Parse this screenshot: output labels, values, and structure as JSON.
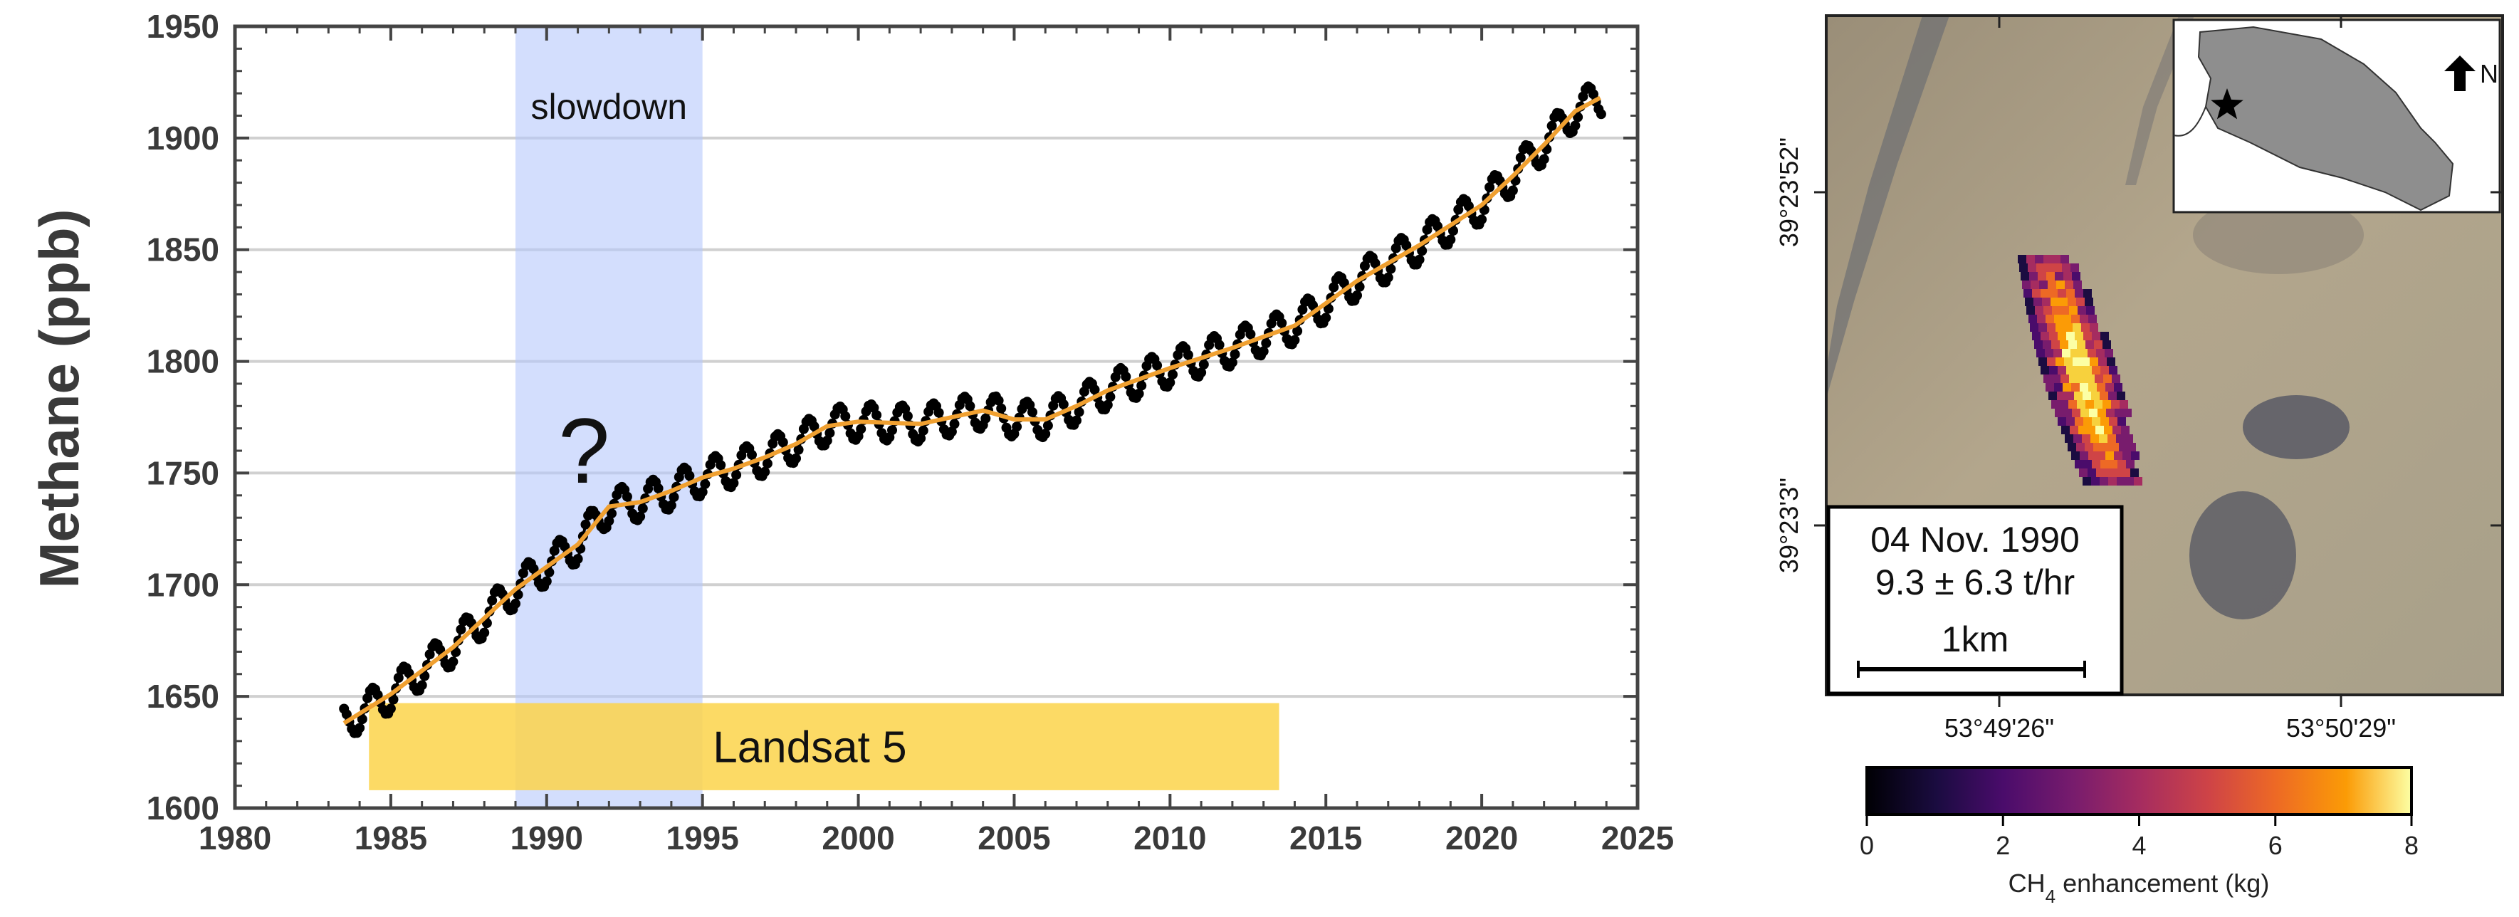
{
  "chart_data": [
    {
      "type": "line",
      "title": "",
      "xlabel": "",
      "ylabel": "Methane (ppb)",
      "xlim": [
        1980,
        2025
      ],
      "ylim": [
        1600,
        1950
      ],
      "grid": "horizontal",
      "xticks": [
        "1980",
        "1985",
        "1990",
        "1995",
        "2000",
        "2005",
        "2010",
        "2015",
        "2020",
        "2025"
      ],
      "yticks": [
        "1600",
        "1650",
        "1700",
        "1750",
        "1800",
        "1850",
        "1900",
        "1950"
      ],
      "series": [
        {
          "kind": "trend",
          "color": "#f0a030",
          "x": [
            1983.5,
            1985,
            1987,
            1989,
            1991,
            1992,
            1993,
            1994,
            1995,
            1996,
            1997,
            1998,
            1999,
            2000,
            2002,
            2004,
            2005,
            2006,
            2007,
            2008,
            2010,
            2012,
            2014,
            2016,
            2018,
            2020,
            2021,
            2022,
            2023,
            2023.8
          ],
          "y": [
            1638,
            1651,
            1672,
            1698,
            1718,
            1735,
            1737,
            1742,
            1748,
            1752,
            1757,
            1763,
            1771,
            1773,
            1772,
            1778,
            1774,
            1774,
            1780,
            1787,
            1797,
            1806,
            1816,
            1836,
            1852,
            1870,
            1883,
            1897,
            1912,
            1918
          ]
        },
        {
          "kind": "monthly-points",
          "color": "#000000",
          "seasonal_amplitude_ppb": 8
        }
      ],
      "annotations": [
        {
          "type": "shaded-region",
          "label": "slowdown",
          "x0": 1989,
          "x1": 1995,
          "color": "#b5c8fb"
        },
        {
          "type": "bar",
          "label": "Landsat 5",
          "x0": 1984.3,
          "x1": 2013.5,
          "y0": 1608,
          "y1": 1647,
          "color": "#fcd34a"
        },
        {
          "type": "text",
          "label": "?",
          "x": 1991.2,
          "y": 1760
        }
      ]
    },
    {
      "type": "heatmap",
      "title": "",
      "colormap": "inferno",
      "colorbar": {
        "label_prefix": "CH",
        "label_sub": "4",
        "label_suffix": " enhancement (kg)",
        "range": [
          0,
          8
        ],
        "ticks": [
          "0",
          "2",
          "4",
          "6",
          "8"
        ]
      },
      "lat_labels": [
        "39°23'52\"",
        "39°23'3\""
      ],
      "lon_labels": [
        "53°49'26\"",
        "53°50'29\""
      ],
      "info_box": {
        "date": "04 Nov. 1990",
        "rate": "9.3 ± 6.3 t/hr",
        "scale": "1km"
      },
      "inset": {
        "north_label": "N",
        "marker": "star"
      }
    }
  ]
}
